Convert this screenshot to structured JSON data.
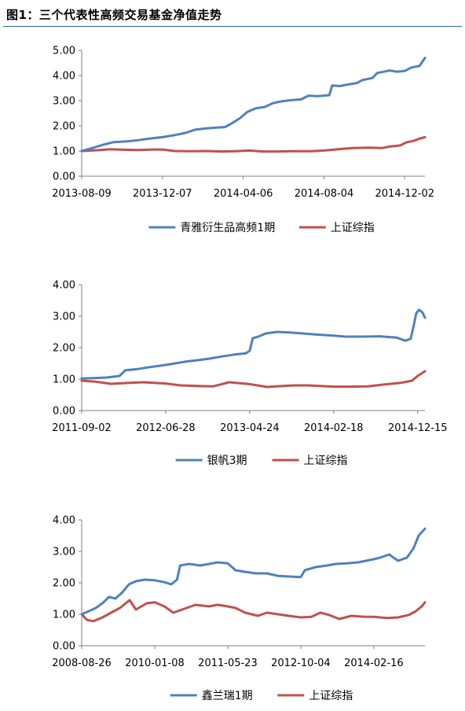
{
  "header": {
    "title": "图1：三个代表性高频交易基金净值走势"
  },
  "colors": {
    "fund": "#4f81bd",
    "index": "#c0504d",
    "axis": "#7f7f7f",
    "header_rule": "#2f6aa8"
  },
  "chart_data": [
    {
      "type": "line",
      "title": "",
      "xlabel": "",
      "ylabel": "",
      "ylim": [
        0,
        5
      ],
      "yticks": [
        "0.00",
        "1.00",
        "2.00",
        "3.00",
        "4.00",
        "5.00"
      ],
      "xlim": [
        "2013-08-09",
        "2015-01-01"
      ],
      "xticks": [
        "2013-08-09",
        "2013-12-07",
        "2014-04-06",
        "2014-08-04",
        "2014-12-02"
      ],
      "legend": "bottom",
      "grid": false,
      "series": [
        {
          "name": "青雅衍生品高频1期",
          "color": "#4f81bd",
          "points": [
            [
              "2013-08-09",
              1.0
            ],
            [
              "2013-08-25",
              1.12
            ],
            [
              "2013-09-10",
              1.25
            ],
            [
              "2013-09-25",
              1.35
            ],
            [
              "2013-10-15",
              1.38
            ],
            [
              "2013-11-01",
              1.43
            ],
            [
              "2013-11-20",
              1.5
            ],
            [
              "2013-12-07",
              1.55
            ],
            [
              "2013-12-25",
              1.63
            ],
            [
              "2014-01-10",
              1.72
            ],
            [
              "2014-01-25",
              1.85
            ],
            [
              "2014-02-10",
              1.9
            ],
            [
              "2014-02-25",
              1.93
            ],
            [
              "2014-03-10",
              1.95
            ],
            [
              "2014-03-20",
              2.1
            ],
            [
              "2014-04-01",
              2.3
            ],
            [
              "2014-04-12",
              2.55
            ],
            [
              "2014-04-25",
              2.7
            ],
            [
              "2014-05-08",
              2.75
            ],
            [
              "2014-05-20",
              2.9
            ],
            [
              "2014-06-01",
              2.97
            ],
            [
              "2014-06-15",
              3.02
            ],
            [
              "2014-07-01",
              3.05
            ],
            [
              "2014-07-12",
              3.2
            ],
            [
              "2014-07-25",
              3.18
            ],
            [
              "2014-08-04",
              3.2
            ],
            [
              "2014-08-12",
              3.22
            ],
            [
              "2014-08-16",
              3.6
            ],
            [
              "2014-08-28",
              3.58
            ],
            [
              "2014-09-10",
              3.65
            ],
            [
              "2014-09-22",
              3.7
            ],
            [
              "2014-09-30",
              3.82
            ],
            [
              "2014-10-15",
              3.9
            ],
            [
              "2014-10-22",
              4.1
            ],
            [
              "2014-11-01",
              4.15
            ],
            [
              "2014-11-10",
              4.2
            ],
            [
              "2014-11-20",
              4.15
            ],
            [
              "2014-12-02",
              4.18
            ],
            [
              "2014-12-12",
              4.32
            ],
            [
              "2014-12-24",
              4.38
            ],
            [
              "2015-01-01",
              4.7
            ]
          ]
        },
        {
          "name": "上证综指",
          "color": "#c0504d",
          "points": [
            [
              "2013-08-09",
              1.0
            ],
            [
              "2013-09-01",
              1.03
            ],
            [
              "2013-09-20",
              1.07
            ],
            [
              "2013-10-10",
              1.05
            ],
            [
              "2013-11-01",
              1.04
            ],
            [
              "2013-11-25",
              1.06
            ],
            [
              "2013-12-07",
              1.06
            ],
            [
              "2013-12-25",
              1.0
            ],
            [
              "2014-01-15",
              0.99
            ],
            [
              "2014-02-10",
              1.0
            ],
            [
              "2014-03-05",
              0.98
            ],
            [
              "2014-03-25",
              0.99
            ],
            [
              "2014-04-15",
              1.02
            ],
            [
              "2014-05-05",
              0.98
            ],
            [
              "2014-05-25",
              0.98
            ],
            [
              "2014-06-20",
              0.99
            ],
            [
              "2014-07-15",
              0.99
            ],
            [
              "2014-08-04",
              1.02
            ],
            [
              "2014-08-25",
              1.07
            ],
            [
              "2014-09-15",
              1.12
            ],
            [
              "2014-10-10",
              1.13
            ],
            [
              "2014-10-30",
              1.12
            ],
            [
              "2014-11-10",
              1.18
            ],
            [
              "2014-11-25",
              1.22
            ],
            [
              "2014-12-05",
              1.35
            ],
            [
              "2014-12-15",
              1.4
            ],
            [
              "2014-12-25",
              1.5
            ],
            [
              "2015-01-01",
              1.55
            ]
          ]
        }
      ]
    },
    {
      "type": "line",
      "title": "",
      "xlabel": "",
      "ylabel": "",
      "ylim": [
        0,
        4
      ],
      "yticks": [
        "0.00",
        "1.00",
        "2.00",
        "3.00",
        "4.00"
      ],
      "xlim": [
        "2011-09-02",
        "2015-01-10"
      ],
      "xticks": [
        "2011-09-02",
        "2012-06-28",
        "2013-04-24",
        "2014-02-18",
        "2014-12-15"
      ],
      "legend": "bottom",
      "grid": false,
      "series": [
        {
          "name": "银帆3期",
          "color": "#4f81bd",
          "points": [
            [
              "2011-09-02",
              1.02
            ],
            [
              "2011-10-15",
              1.03
            ],
            [
              "2011-12-01",
              1.05
            ],
            [
              "2012-01-15",
              1.1
            ],
            [
              "2012-02-05",
              1.28
            ],
            [
              "2012-03-20",
              1.32
            ],
            [
              "2012-05-01",
              1.38
            ],
            [
              "2012-06-28",
              1.45
            ],
            [
              "2012-08-01",
              1.5
            ],
            [
              "2012-09-10",
              1.56
            ],
            [
              "2012-10-20",
              1.6
            ],
            [
              "2012-12-01",
              1.65
            ],
            [
              "2013-01-15",
              1.72
            ],
            [
              "2013-03-01",
              1.78
            ],
            [
              "2013-04-10",
              1.82
            ],
            [
              "2013-04-24",
              1.9
            ],
            [
              "2013-05-05",
              2.3
            ],
            [
              "2013-05-25",
              2.35
            ],
            [
              "2013-06-20",
              2.45
            ],
            [
              "2013-08-01",
              2.5
            ],
            [
              "2013-09-15",
              2.48
            ],
            [
              "2013-11-01",
              2.45
            ],
            [
              "2013-12-15",
              2.42
            ],
            [
              "2014-02-18",
              2.38
            ],
            [
              "2014-04-01",
              2.35
            ],
            [
              "2014-06-01",
              2.35
            ],
            [
              "2014-08-01",
              2.36
            ],
            [
              "2014-10-01",
              2.32
            ],
            [
              "2014-11-01",
              2.22
            ],
            [
              "2014-11-20",
              2.28
            ],
            [
              "2014-12-01",
              2.7
            ],
            [
              "2014-12-10",
              3.1
            ],
            [
              "2014-12-20",
              3.2
            ],
            [
              "2015-01-01",
              3.12
            ],
            [
              "2015-01-10",
              2.95
            ]
          ]
        },
        {
          "name": "上证综指",
          "color": "#c0504d",
          "points": [
            [
              "2011-09-02",
              0.95
            ],
            [
              "2011-10-20",
              0.92
            ],
            [
              "2011-12-15",
              0.85
            ],
            [
              "2012-02-20",
              0.88
            ],
            [
              "2012-04-10",
              0.9
            ],
            [
              "2012-06-28",
              0.86
            ],
            [
              "2012-08-20",
              0.8
            ],
            [
              "2012-10-20",
              0.78
            ],
            [
              "2012-12-15",
              0.77
            ],
            [
              "2013-02-10",
              0.9
            ],
            [
              "2013-04-24",
              0.84
            ],
            [
              "2013-06-25",
              0.75
            ],
            [
              "2013-08-20",
              0.78
            ],
            [
              "2013-10-01",
              0.8
            ],
            [
              "2013-11-20",
              0.8
            ],
            [
              "2014-02-18",
              0.76
            ],
            [
              "2014-04-20",
              0.76
            ],
            [
              "2014-06-20",
              0.77
            ],
            [
              "2014-08-20",
              0.83
            ],
            [
              "2014-10-15",
              0.88
            ],
            [
              "2014-11-25",
              0.95
            ],
            [
              "2014-12-15",
              1.1
            ],
            [
              "2015-01-10",
              1.25
            ]
          ]
        }
      ]
    },
    {
      "type": "line",
      "title": "",
      "xlabel": "",
      "ylabel": "",
      "ylim": [
        0,
        4
      ],
      "yticks": [
        "0.00",
        "1.00",
        "2.00",
        "3.00",
        "4.00"
      ],
      "xlim": [
        "2008-08-26",
        "2015-02-01"
      ],
      "xticks": [
        "2008-08-26",
        "2010-01-08",
        "2011-05-23",
        "2012-10-04",
        "2014-02-16"
      ],
      "legend": "bottom",
      "grid": false,
      "series": [
        {
          "name": "鑫兰瑞1期",
          "color": "#4f81bd",
          "points": [
            [
              "2008-08-26",
              1.0
            ],
            [
              "2008-10-15",
              1.1
            ],
            [
              "2008-12-01",
              1.2
            ],
            [
              "2009-01-15",
              1.35
            ],
            [
              "2009-03-01",
              1.55
            ],
            [
              "2009-04-15",
              1.5
            ],
            [
              "2009-06-01",
              1.7
            ],
            [
              "2009-07-15",
              1.95
            ],
            [
              "2009-09-01",
              2.05
            ],
            [
              "2009-11-01",
              2.1
            ],
            [
              "2010-01-08",
              2.08
            ],
            [
              "2010-03-15",
              2.02
            ],
            [
              "2010-05-01",
              1.95
            ],
            [
              "2010-06-10",
              2.1
            ],
            [
              "2010-07-01",
              2.55
            ],
            [
              "2010-09-01",
              2.6
            ],
            [
              "2010-11-15",
              2.55
            ],
            [
              "2011-01-15",
              2.6
            ],
            [
              "2011-03-15",
              2.65
            ],
            [
              "2011-05-23",
              2.62
            ],
            [
              "2011-07-15",
              2.4
            ],
            [
              "2011-09-15",
              2.35
            ],
            [
              "2011-12-01",
              2.3
            ],
            [
              "2012-02-15",
              2.3
            ],
            [
              "2012-05-01",
              2.22
            ],
            [
              "2012-07-15",
              2.2
            ],
            [
              "2012-10-04",
              2.18
            ],
            [
              "2012-11-01",
              2.4
            ],
            [
              "2013-01-15",
              2.5
            ],
            [
              "2013-04-01",
              2.55
            ],
            [
              "2013-06-01",
              2.6
            ],
            [
              "2013-08-15",
              2.62
            ],
            [
              "2013-11-01",
              2.65
            ],
            [
              "2014-02-16",
              2.75
            ],
            [
              "2014-04-01",
              2.8
            ],
            [
              "2014-06-01",
              2.9
            ],
            [
              "2014-08-01",
              2.7
            ],
            [
              "2014-10-01",
              2.8
            ],
            [
              "2014-11-15",
              3.1
            ],
            [
              "2014-12-20",
              3.5
            ],
            [
              "2015-02-01",
              3.72
            ]
          ]
        },
        {
          "name": "上证综指",
          "color": "#c0504d",
          "points": [
            [
              "2008-08-26",
              1.0
            ],
            [
              "2008-10-01",
              0.82
            ],
            [
              "2008-11-15",
              0.78
            ],
            [
              "2009-01-15",
              0.9
            ],
            [
              "2009-03-15",
              1.05
            ],
            [
              "2009-05-15",
              1.2
            ],
            [
              "2009-07-20",
              1.45
            ],
            [
              "2009-09-01",
              1.15
            ],
            [
              "2009-11-15",
              1.35
            ],
            [
              "2010-01-08",
              1.38
            ],
            [
              "2010-03-15",
              1.25
            ],
            [
              "2010-05-15",
              1.05
            ],
            [
              "2010-07-15",
              1.15
            ],
            [
              "2010-10-15",
              1.3
            ],
            [
              "2011-01-15",
              1.25
            ],
            [
              "2011-03-15",
              1.3
            ],
            [
              "2011-05-23",
              1.25
            ],
            [
              "2011-07-15",
              1.2
            ],
            [
              "2011-09-20",
              1.05
            ],
            [
              "2011-12-15",
              0.95
            ],
            [
              "2012-02-15",
              1.05
            ],
            [
              "2012-05-01",
              1.0
            ],
            [
              "2012-07-15",
              0.95
            ],
            [
              "2012-10-04",
              0.9
            ],
            [
              "2012-12-15",
              0.92
            ],
            [
              "2013-02-15",
              1.05
            ],
            [
              "2013-04-15",
              0.98
            ],
            [
              "2013-06-25",
              0.85
            ],
            [
              "2013-09-15",
              0.95
            ],
            [
              "2013-12-15",
              0.92
            ],
            [
              "2014-02-16",
              0.92
            ],
            [
              "2014-05-15",
              0.88
            ],
            [
              "2014-08-01",
              0.9
            ],
            [
              "2014-10-15",
              0.98
            ],
            [
              "2014-12-01",
              1.1
            ],
            [
              "2015-01-10",
              1.25
            ],
            [
              "2015-02-01",
              1.38
            ]
          ]
        }
      ]
    }
  ]
}
